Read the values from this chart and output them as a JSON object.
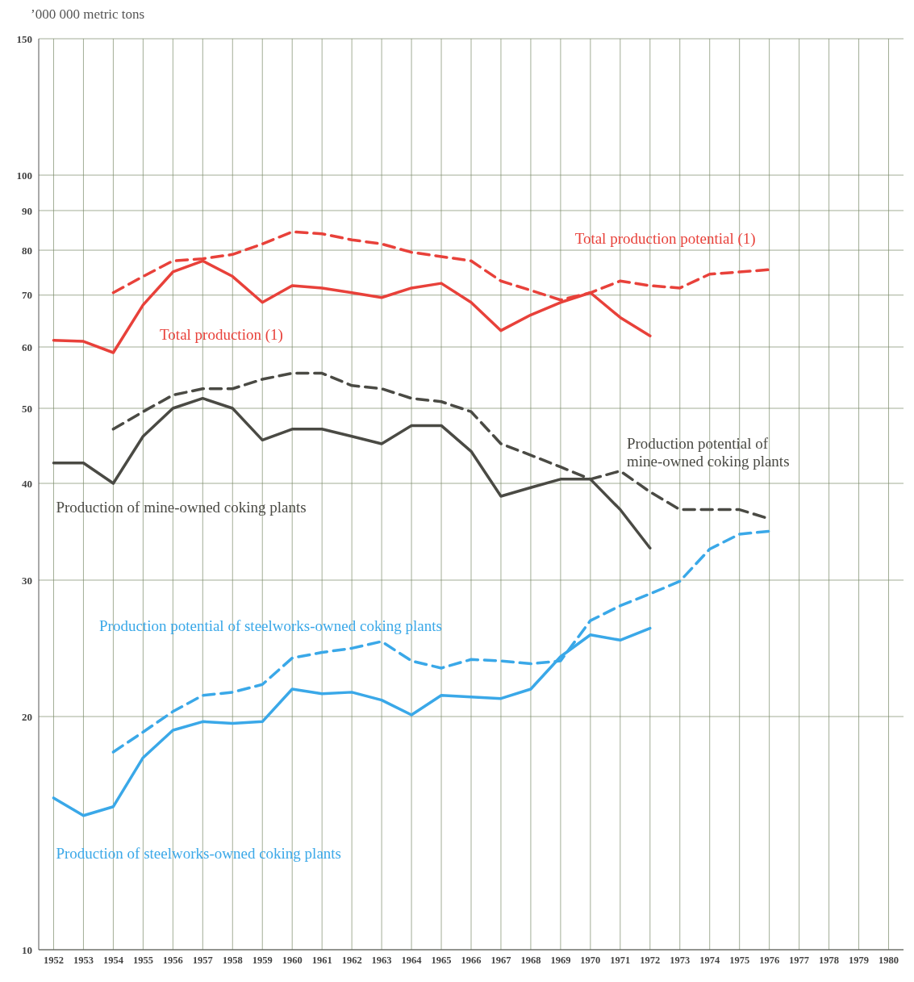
{
  "chart_data": {
    "type": "line",
    "ylabel": "’000 000 metric tons",
    "log": "y",
    "grid": true,
    "legend": false,
    "marker": "none",
    "xlim": [
      1951.5,
      1980.5
    ],
    "xticks": [
      1952,
      1953,
      1954,
      1955,
      1956,
      1957,
      1958,
      1959,
      1960,
      1961,
      1962,
      1963,
      1964,
      1965,
      1966,
      1967,
      1968,
      1969,
      1970,
      1971,
      1972,
      1973,
      1974,
      1975,
      1976,
      1977,
      1978,
      1979,
      1980
    ],
    "ylim": [
      10,
      150
    ],
    "yticks": [
      10,
      20,
      30,
      40,
      50,
      60,
      70,
      80,
      90,
      100,
      150
    ],
    "series": [
      {
        "name": "Total production (1)",
        "color": "#e8413a",
        "line_style": "solid",
        "x": [
          1952,
          1953,
          1954,
          1955,
          1956,
          1957,
          1958,
          1959,
          1960,
          1961,
          1962,
          1963,
          1964,
          1965,
          1966,
          1967,
          1968,
          1969,
          1970,
          1971,
          1972
        ],
        "values": [
          61.2,
          61,
          59,
          68,
          75,
          77.5,
          74,
          68.5,
          72,
          71.5,
          70.5,
          69.5,
          71.5,
          72.5,
          68.5,
          63,
          66,
          68.5,
          70.5,
          65.5,
          62
        ]
      },
      {
        "name": "Total production potential (1)",
        "color": "#e8413a",
        "line_style": "dashed",
        "x": [
          1954,
          1955,
          1956,
          1957,
          1958,
          1959,
          1960,
          1961,
          1962,
          1963,
          1964,
          1965,
          1966,
          1967,
          1968,
          1969,
          1970,
          1971,
          1972,
          1973,
          1974,
          1975,
          1976
        ],
        "values": [
          70.5,
          74,
          77.5,
          78,
          79,
          81.5,
          84.5,
          84,
          82.5,
          81.5,
          79.5,
          78.5,
          77.5,
          73,
          71,
          69,
          70.5,
          73,
          72,
          71.5,
          74.5,
          75,
          75.5
        ]
      },
      {
        "name": "Production of mine-owned coking plants",
        "color": "#4a4a44",
        "line_style": "solid",
        "x": [
          1952,
          1953,
          1954,
          1955,
          1956,
          1957,
          1958,
          1959,
          1960,
          1961,
          1962,
          1963,
          1964,
          1965,
          1966,
          1967,
          1968,
          1969,
          1970,
          1971,
          1972
        ],
        "values": [
          42.5,
          42.5,
          40,
          46,
          50,
          51.5,
          50,
          45.5,
          47,
          47,
          46,
          45,
          47.5,
          47.5,
          44,
          38.5,
          39.5,
          40.5,
          40.5,
          37,
          33
        ]
      },
      {
        "name": "Production potential of mine-owned coking plants",
        "color": "#4a4a44",
        "line_style": "dashed",
        "x": [
          1954,
          1955,
          1956,
          1957,
          1958,
          1959,
          1960,
          1961,
          1962,
          1963,
          1964,
          1965,
          1966,
          1967,
          1968,
          1969,
          1970,
          1971,
          1972,
          1973,
          1974,
          1975,
          1976
        ],
        "values": [
          47,
          49.5,
          52,
          53,
          53,
          54.5,
          55.5,
          55.5,
          53.5,
          53,
          51.5,
          51,
          49.5,
          45,
          43.5,
          42,
          40.5,
          41.5,
          39,
          37,
          37,
          37,
          36
        ]
      },
      {
        "name": "Production of steelworks-owned coking plants",
        "color": "#3aa8e8",
        "line_style": "solid",
        "x": [
          1952,
          1953,
          1954,
          1955,
          1956,
          1957,
          1958,
          1959,
          1960,
          1961,
          1962,
          1963,
          1964,
          1965,
          1966,
          1967,
          1968,
          1969,
          1970,
          1971,
          1972
        ],
        "values": [
          15.7,
          14.9,
          15.3,
          17.7,
          19.2,
          19.7,
          19.6,
          19.7,
          21.7,
          21.4,
          21.5,
          21,
          20.1,
          21.3,
          21.2,
          21.1,
          21.7,
          23.9,
          25.5,
          25.1,
          26
        ]
      },
      {
        "name": "Production potential of steelworks-owned coking plants",
        "color": "#3aa8e8",
        "line_style": "dashed",
        "x": [
          1954,
          1955,
          1956,
          1957,
          1958,
          1959,
          1960,
          1961,
          1962,
          1963,
          1964,
          1965,
          1966,
          1967,
          1968,
          1969,
          1970,
          1971,
          1972,
          1973,
          1974,
          1975,
          1976
        ],
        "values": [
          18,
          19.1,
          20.3,
          21.3,
          21.5,
          22,
          23.8,
          24.2,
          24.5,
          25,
          23.6,
          23.1,
          23.7,
          23.6,
          23.4,
          23.6,
          26.6,
          27.8,
          28.8,
          29.9,
          32.9,
          34.4,
          34.7
        ]
      }
    ]
  }
}
